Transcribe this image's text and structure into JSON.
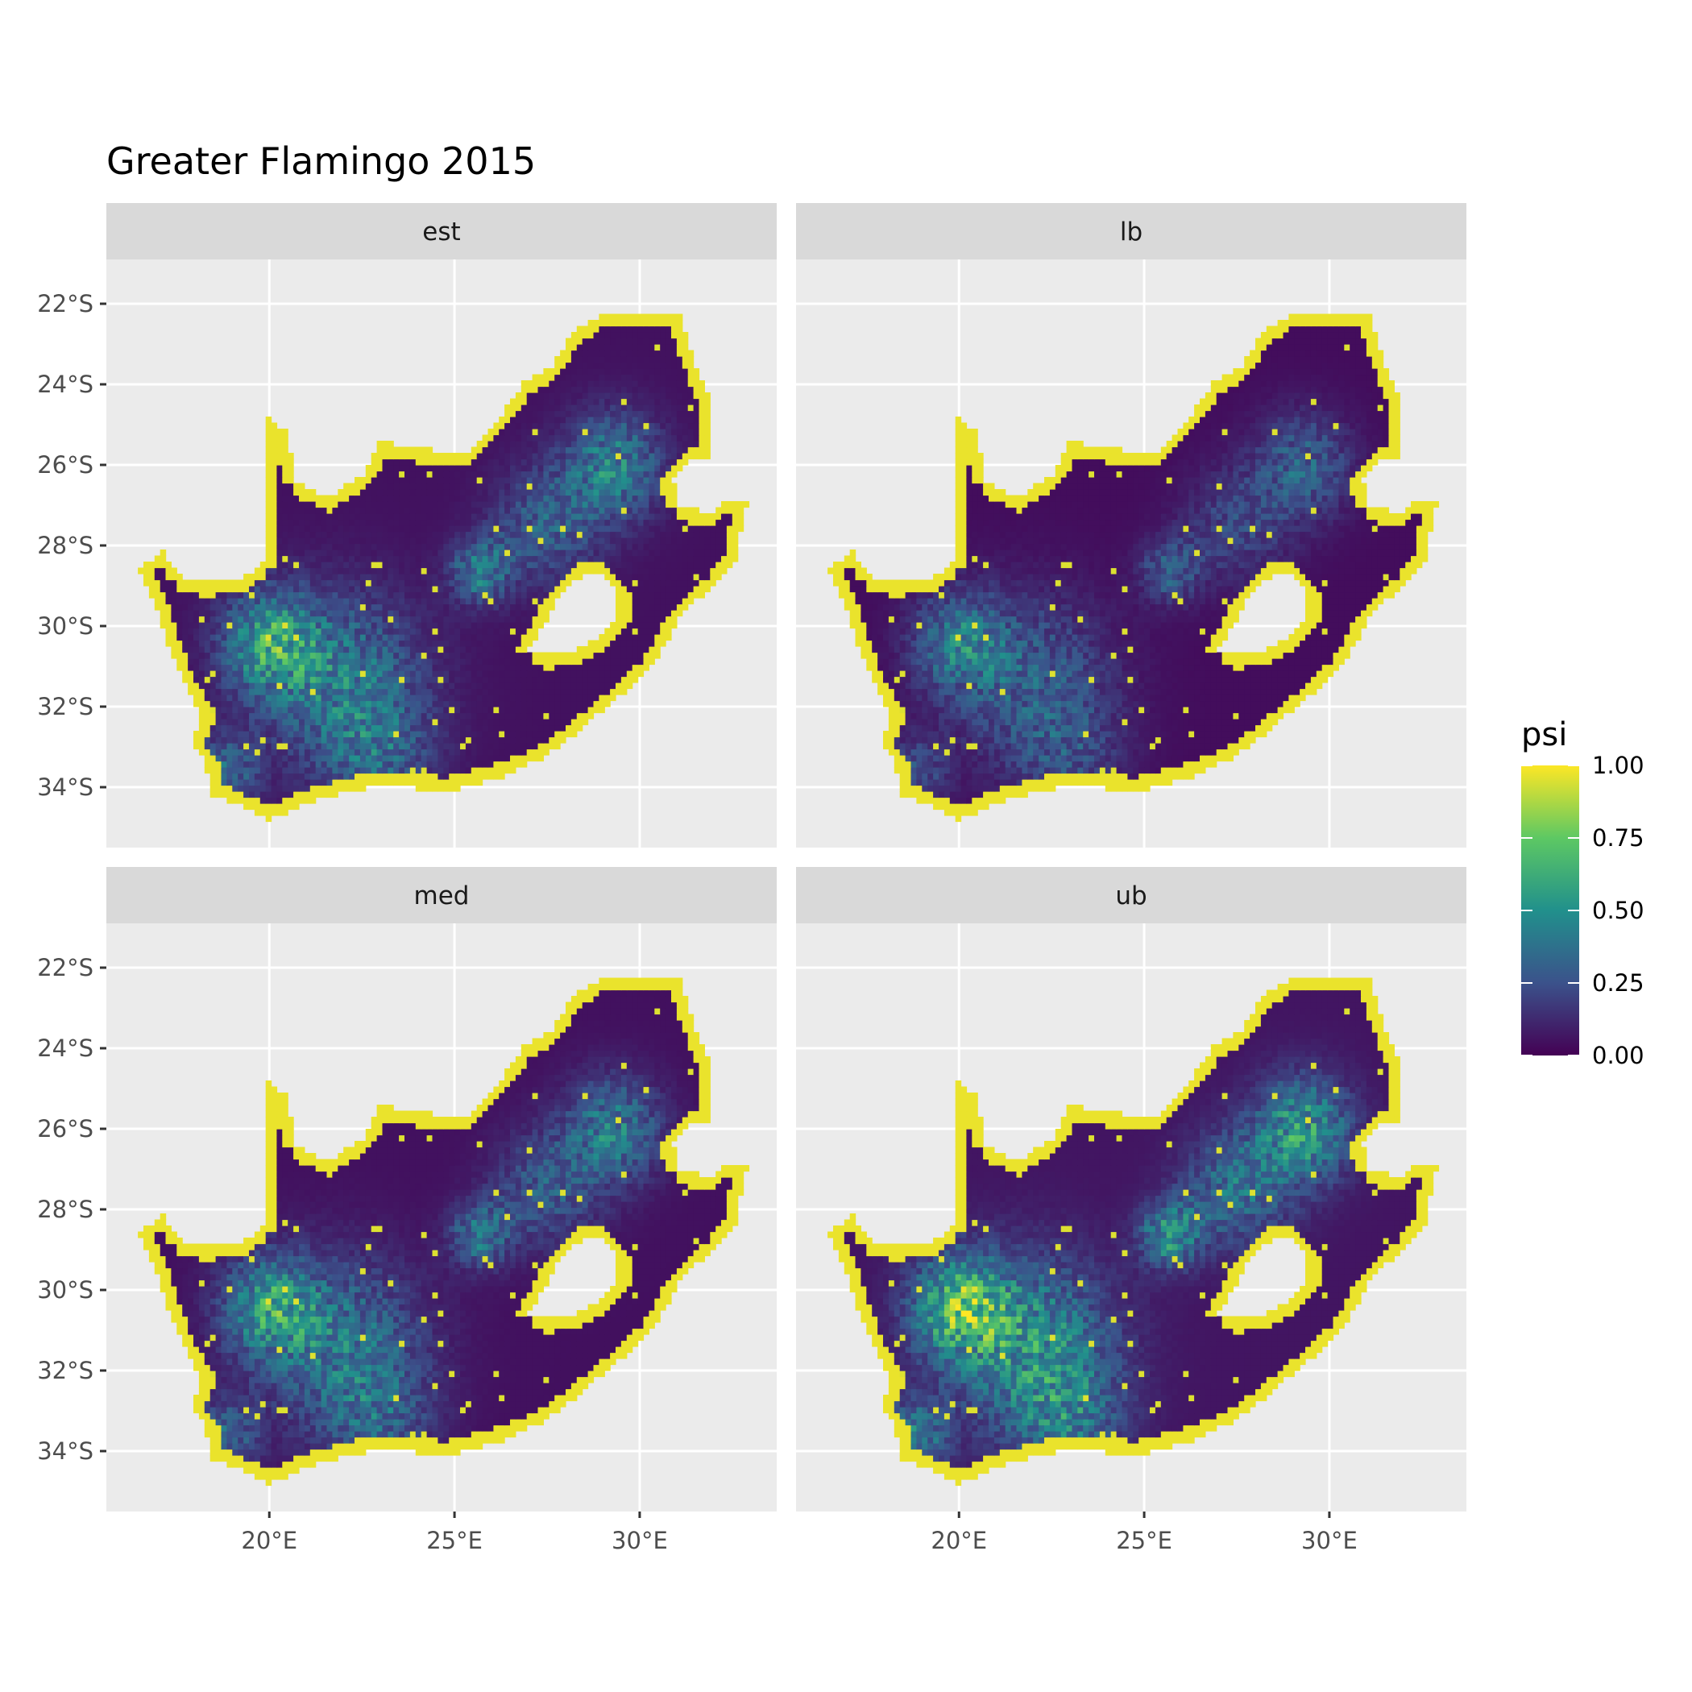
{
  "title": "Greater Flamingo 2015",
  "panels": [
    {
      "label": "est",
      "intensity": 1.0
    },
    {
      "label": "lb",
      "intensity": 0.72
    },
    {
      "label": "med",
      "intensity": 0.95
    },
    {
      "label": "ub",
      "intensity": 1.22
    }
  ],
  "axes": {
    "x_ticks": [
      {
        "value": 20,
        "label": "20°E"
      },
      {
        "value": 25,
        "label": "25°E"
      },
      {
        "value": 30,
        "label": "30°E"
      }
    ],
    "y_ticks": [
      {
        "value": -22,
        "label": "22°S"
      },
      {
        "value": -24,
        "label": "24°S"
      },
      {
        "value": -26,
        "label": "26°S"
      },
      {
        "value": -28,
        "label": "28°S"
      },
      {
        "value": -30,
        "label": "30°S"
      },
      {
        "value": -32,
        "label": "32°S"
      },
      {
        "value": -34,
        "label": "34°S"
      }
    ],
    "xlim": [
      15.6,
      33.7
    ],
    "ylim": [
      -35.5,
      -20.9
    ]
  },
  "legend": {
    "title": "psi",
    "ticks": [
      {
        "value": 1.0,
        "label": "1.00"
      },
      {
        "value": 0.75,
        "label": "0.75"
      },
      {
        "value": 0.5,
        "label": "0.50"
      },
      {
        "value": 0.25,
        "label": "0.25"
      },
      {
        "value": 0.0,
        "label": "0.00"
      }
    ],
    "colors": [
      "#440154",
      "#3b528b",
      "#21908c",
      "#5dc863",
      "#fde725"
    ]
  },
  "colors": {
    "panel_background": "#ebebeb",
    "strip_background": "#d9d9d9",
    "grid": "#ffffff",
    "low": "#440154",
    "high": "#fde725"
  }
}
